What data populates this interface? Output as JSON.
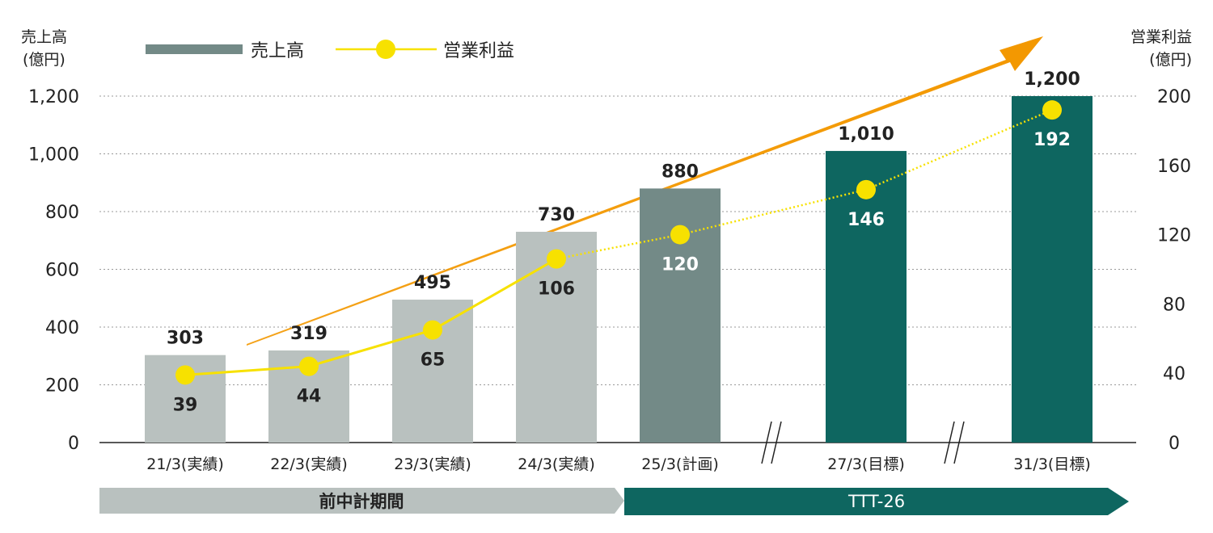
{
  "chart_data": {
    "type": "bar",
    "title": "",
    "left_axis": {
      "title_line1": "売上高",
      "title_line2": "(億円)",
      "ylim": [
        0,
        1200
      ],
      "ticks": [
        0,
        200,
        400,
        600,
        800,
        1000,
        1200
      ],
      "tick_labels": [
        "0",
        "200",
        "400",
        "600",
        "800",
        "1,000",
        "1,200"
      ]
    },
    "right_axis": {
      "title_line1": "営業利益",
      "title_line2": "(億円)",
      "ylim": [
        0,
        200
      ],
      "ticks": [
        0,
        40,
        80,
        120,
        160,
        200
      ],
      "tick_labels": [
        "0",
        "40",
        "80",
        "120",
        "160",
        "200"
      ]
    },
    "categories": [
      "21/3(実績)",
      "22/3(実績)",
      "23/3(実績)",
      "24/3(実績)",
      "25/3(計画)",
      "27/3(目標)",
      "31/3(目標)"
    ],
    "series": [
      {
        "name": "売上高",
        "type": "bar",
        "axis": "left",
        "values": [
          303,
          319,
          495,
          730,
          880,
          1010,
          1200
        ],
        "value_labels": [
          "303",
          "319",
          "495",
          "730",
          "880",
          "1,010",
          "1,200"
        ]
      },
      {
        "name": "営業利益",
        "type": "line",
        "axis": "right",
        "values": [
          39,
          44,
          65,
          106,
          120,
          146,
          192
        ],
        "value_labels": [
          "39",
          "44",
          "65",
          "106",
          "120",
          "146",
          "192"
        ]
      }
    ],
    "grid": true,
    "legend": "top-left",
    "colors": {
      "actual_bar": "#b9c1bf",
      "plan_bar": "#738a87",
      "target_bar": "#0e6660",
      "profit_line": "#f7e100",
      "trend_arrow": "#f39800",
      "grid": "#999999"
    },
    "periods": [
      {
        "label": "前中計期間",
        "from": 0,
        "to": 3
      },
      {
        "label": "TTT-26",
        "from": 4,
        "to": 6
      }
    ]
  }
}
